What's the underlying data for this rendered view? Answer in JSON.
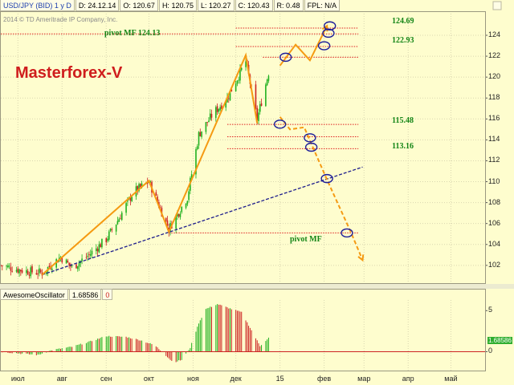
{
  "header": {
    "symbol": "USD/JPY (BID) 1 у D",
    "date": "D: 24.12.14",
    "open": "O: 120.67",
    "high": "H: 120.75",
    "low": "L: 120.27",
    "close": "C: 120.43",
    "range": "R: 0.48",
    "fpl": "FPL: N/A"
  },
  "copyright": "2014 © TD Ameritrade IP Company, Inc.",
  "title": "Masterforex-V",
  "annotations": {
    "pivot_top": "pivot MF 124.13",
    "pivot_bottom": "pivot MF"
  },
  "level_labels": [
    "124.69",
    "122.93",
    "115.48",
    "113.16"
  ],
  "indicator": {
    "name": "AwesomeOscillator",
    "value": "1.68586",
    "zero_label": "0"
  },
  "colors": {
    "background": "#fefdce",
    "candle_up": "#20b020",
    "candle_down": "#cc2222",
    "wave_orange": "#f59a12",
    "trendline_navy": "#1d1d8c",
    "level_red": "#dd2020",
    "label_green": "#138516",
    "title_red": "#cf1d1d"
  },
  "chart_data": [
    {
      "type": "candlestick",
      "title": "USD/JPY (BID) 1 у D",
      "x_tick_labels": [
        "июл",
        "авг",
        "сен",
        "окт",
        "ноя",
        "дек",
        "15",
        "фев",
        "мар",
        "апр",
        "май"
      ],
      "y_tick_labels": [
        "102",
        "104",
        "106",
        "108",
        "110",
        "112",
        "114",
        "116",
        "118",
        "120",
        "122",
        "124"
      ],
      "ylim": [
        100.3,
        126.3
      ],
      "close_path": [
        {
          "date": "2014-06-19",
          "value": 102.0
        },
        {
          "date": "2014-07-01",
          "value": 101.6
        },
        {
          "date": "2014-07-10",
          "value": 101.4
        },
        {
          "date": "2014-07-18",
          "value": 101.3
        },
        {
          "date": "2014-07-31",
          "value": 102.8
        },
        {
          "date": "2014-08-08",
          "value": 101.8
        },
        {
          "date": "2014-08-20",
          "value": 103.0
        },
        {
          "date": "2014-09-01",
          "value": 104.5
        },
        {
          "date": "2014-09-10",
          "value": 106.5
        },
        {
          "date": "2014-09-20",
          "value": 109.0
        },
        {
          "date": "2014-10-01",
          "value": 110.0
        },
        {
          "date": "2014-10-15",
          "value": 105.5
        },
        {
          "date": "2014-10-28",
          "value": 108.5
        },
        {
          "date": "2014-11-05",
          "value": 114.5
        },
        {
          "date": "2014-11-15",
          "value": 116.5
        },
        {
          "date": "2014-11-25",
          "value": 118.0
        },
        {
          "date": "2014-12-08",
          "value": 121.5
        },
        {
          "date": "2014-12-16",
          "value": 116.0
        },
        {
          "date": "2014-12-24",
          "value": 120.43
        }
      ],
      "wave_path": [
        {
          "date": "2014-07-18",
          "value": 101.1
        },
        {
          "date": "2014-10-01",
          "value": 110.1
        },
        {
          "date": "2014-10-15",
          "value": 105.2
        },
        {
          "date": "2014-12-08",
          "value": 122.1
        },
        {
          "date": "2014-12-16",
          "value": 115.6
        }
      ],
      "forecast_up": [
        {
          "date": "2015-01-01",
          "value": 121.1
        },
        {
          "date": "2015-01-12",
          "value": 123.1
        },
        {
          "date": "2015-01-22",
          "value": 121.6
        },
        {
          "date": "2015-02-03",
          "value": 124.9
        }
      ],
      "forecast_down": [
        {
          "date": "2015-01-01",
          "value": 116.2
        },
        {
          "date": "2015-01-08",
          "value": 115.0
        },
        {
          "date": "2015-01-18",
          "value": 115.2
        },
        {
          "date": "2015-01-25",
          "value": 113.0
        },
        {
          "date": "2015-02-03",
          "value": 110.2
        },
        {
          "date": "2015-02-20",
          "value": 105.1
        },
        {
          "date": "2015-02-28",
          "value": 102.5
        }
      ],
      "trendline": [
        {
          "date": "2014-07-18",
          "value": 101.1
        },
        {
          "date": "2015-02-28",
          "value": 111.4
        }
      ],
      "levels": [
        {
          "value": 124.69,
          "label": "124.69",
          "from": "2014-12-01",
          "to": "2015-02-25"
        },
        {
          "value": 124.13,
          "label": "pivot MF 124.13",
          "from": "2014-06-19",
          "to": "2015-02-25"
        },
        {
          "value": 122.93,
          "label": "122.93",
          "from": "2014-12-01",
          "to": "2015-02-25"
        },
        {
          "value": 121.9,
          "label": "",
          "from": "2014-12-20",
          "to": "2015-02-25"
        },
        {
          "value": 115.48,
          "label": "115.48",
          "from": "2014-11-25",
          "to": "2015-02-25"
        },
        {
          "value": 114.3,
          "label": "",
          "from": "2014-11-25",
          "to": "2015-02-25"
        },
        {
          "value": 113.16,
          "label": "113.16",
          "from": "2014-11-25",
          "to": "2015-02-25"
        },
        {
          "value": 105.1,
          "label": "pivot MF",
          "from": "2014-10-15",
          "to": "2015-02-25"
        }
      ],
      "markers": [
        {
          "date": "2015-02-05",
          "value": 124.9
        },
        {
          "date": "2015-02-04",
          "value": 124.2
        },
        {
          "date": "2015-02-01",
          "value": 123.0
        },
        {
          "date": "2015-01-05",
          "value": 121.9
        },
        {
          "date": "2015-01-01",
          "value": 115.5
        },
        {
          "date": "2015-01-22",
          "value": 114.2
        },
        {
          "date": "2015-01-23",
          "value": 113.3
        },
        {
          "date": "2015-02-03",
          "value": 110.3
        },
        {
          "date": "2015-02-17",
          "value": 105.1
        }
      ]
    },
    {
      "type": "bar",
      "title": "AwesomeOscillator",
      "y_tick_labels": [
        "5",
        "0"
      ],
      "ylim": [
        -2.3,
        6.3
      ],
      "current_value": 1.68586,
      "profile": [
        {
          "date": "2014-06-19",
          "value": 0.0
        },
        {
          "date": "2014-07-01",
          "value": -0.2
        },
        {
          "date": "2014-07-15",
          "value": -0.4
        },
        {
          "date": "2014-07-25",
          "value": 0.2
        },
        {
          "date": "2014-08-08",
          "value": 0.6
        },
        {
          "date": "2014-08-20",
          "value": 1.2
        },
        {
          "date": "2014-09-01",
          "value": 1.9
        },
        {
          "date": "2014-09-15",
          "value": 1.8
        },
        {
          "date": "2014-09-25",
          "value": 1.4
        },
        {
          "date": "2014-10-05",
          "value": 0.8
        },
        {
          "date": "2014-10-12",
          "value": -0.3
        },
        {
          "date": "2014-10-18",
          "value": -1.3
        },
        {
          "date": "2014-10-24",
          "value": -1.0
        },
        {
          "date": "2014-10-30",
          "value": 0.5
        },
        {
          "date": "2014-11-05",
          "value": 3.5
        },
        {
          "date": "2014-11-10",
          "value": 5.2
        },
        {
          "date": "2014-11-18",
          "value": 5.8
        },
        {
          "date": "2014-11-28",
          "value": 5.2
        },
        {
          "date": "2014-12-05",
          "value": 4.8
        },
        {
          "date": "2014-12-12",
          "value": 2.6
        },
        {
          "date": "2014-12-18",
          "value": 0.7
        },
        {
          "date": "2014-12-24",
          "value": 1.69
        }
      ]
    }
  ]
}
